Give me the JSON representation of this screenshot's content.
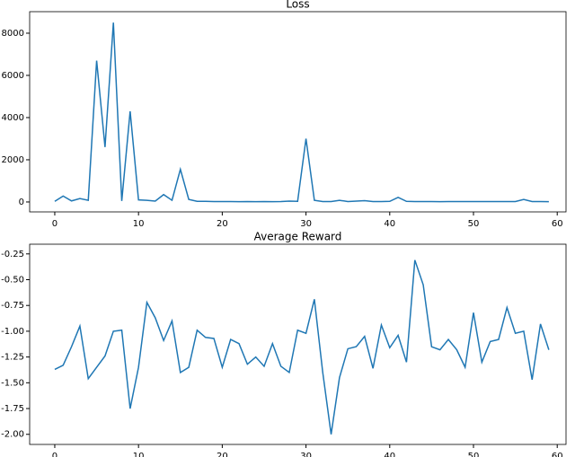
{
  "chart_data": [
    {
      "type": "line",
      "title": "Loss",
      "x": [
        0,
        1,
        2,
        3,
        4,
        5,
        6,
        7,
        8,
        9,
        10,
        11,
        12,
        13,
        14,
        15,
        16,
        17,
        18,
        19,
        20,
        21,
        22,
        23,
        24,
        25,
        26,
        27,
        28,
        29,
        30,
        31,
        32,
        33,
        34,
        35,
        36,
        37,
        38,
        39,
        40,
        41,
        42,
        43,
        44,
        45,
        46,
        47,
        48,
        49,
        50,
        51,
        52,
        53,
        54,
        55,
        56,
        57,
        58,
        59
      ],
      "series": [
        {
          "name": "Loss",
          "color": "#1f77b4",
          "values": [
            30,
            280,
            50,
            160,
            80,
            6700,
            2600,
            8500,
            50,
            4300,
            100,
            80,
            40,
            350,
            80,
            1550,
            120,
            30,
            30,
            20,
            20,
            20,
            15,
            20,
            15,
            20,
            15,
            20,
            40,
            30,
            3000,
            80,
            20,
            20,
            80,
            20,
            40,
            60,
            20,
            20,
            30,
            220,
            30,
            20,
            20,
            20,
            15,
            20,
            20,
            20,
            20,
            20,
            20,
            20,
            20,
            20,
            120,
            20,
            20,
            15
          ]
        }
      ],
      "xlim": [
        -3,
        61.05
      ],
      "xticks": [
        0,
        10,
        20,
        30,
        40,
        50,
        60
      ],
      "ylim": [
        -470,
        9020
      ],
      "yticks": [
        0,
        2000,
        4000,
        6000,
        8000
      ]
    },
    {
      "type": "line",
      "title": "Average Reward",
      "x": [
        0,
        1,
        2,
        3,
        4,
        5,
        6,
        7,
        8,
        9,
        10,
        11,
        12,
        13,
        14,
        15,
        16,
        17,
        18,
        19,
        20,
        21,
        22,
        23,
        24,
        25,
        26,
        27,
        28,
        29,
        30,
        31,
        32,
        33,
        34,
        35,
        36,
        37,
        38,
        39,
        40,
        41,
        42,
        43,
        44,
        45,
        46,
        47,
        48,
        49,
        50,
        51,
        52,
        53,
        54,
        55,
        56,
        57,
        58,
        59
      ],
      "series": [
        {
          "name": "Average Reward",
          "color": "#1f77b4",
          "values": [
            -1.37,
            -1.33,
            -1.15,
            -0.95,
            -1.46,
            -1.35,
            -1.24,
            -1.0,
            -0.99,
            -1.75,
            -1.35,
            -0.72,
            -0.87,
            -1.09,
            -0.9,
            -1.4,
            -1.35,
            -0.99,
            -1.06,
            -1.07,
            -1.35,
            -1.08,
            -1.12,
            -1.32,
            -1.25,
            -1.34,
            -1.12,
            -1.34,
            -1.4,
            -0.99,
            -1.02,
            -0.69,
            -1.4,
            -2.0,
            -1.45,
            -1.17,
            -1.15,
            -1.05,
            -1.36,
            -0.94,
            -1.16,
            -1.04,
            -1.3,
            -0.31,
            -0.55,
            -1.15,
            -1.18,
            -1.08,
            -1.18,
            -1.35,
            -0.82,
            -1.3,
            -1.1,
            -1.08,
            -0.77,
            -1.02,
            -1.0,
            -1.47,
            -0.93,
            -1.18
          ]
        }
      ],
      "xlim": [
        -3,
        61.05
      ],
      "xticks": [
        0,
        10,
        20,
        30,
        40,
        50,
        60
      ],
      "ylim": [
        -2.098,
        -0.156
      ],
      "yticks": [
        {
          "value": -2.0,
          "label": "-2.00"
        },
        {
          "value": -1.75,
          "label": "-1.75"
        },
        {
          "value": -1.5,
          "label": "-1.50"
        },
        {
          "value": -1.25,
          "label": "-1.25"
        },
        {
          "value": -1.0,
          "label": "-1.00"
        },
        {
          "value": -0.75,
          "label": "-0.75"
        },
        {
          "value": -0.5,
          "label": "-0.50"
        },
        {
          "value": -0.25,
          "label": "-0.25"
        }
      ]
    }
  ]
}
